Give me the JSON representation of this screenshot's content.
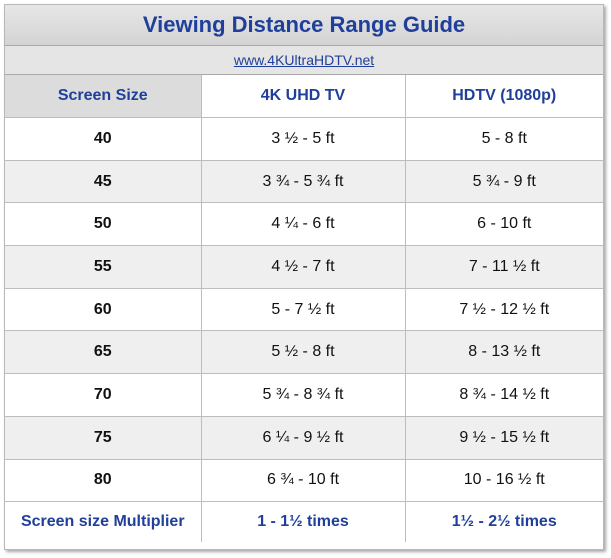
{
  "title": "Viewing Distance Range Guide",
  "url": "www.4KUltraHDTV.net",
  "headers": {
    "screen_size": "Screen Size",
    "uhd": "4K UHD TV",
    "hdtv": "HDTV  (1080p)"
  },
  "rows": [
    {
      "size": "40",
      "uhd": "3 ½ - 5 ft",
      "hdtv": "5 - 8 ft"
    },
    {
      "size": "45",
      "uhd": "3 ¾ - 5 ¾ ft",
      "hdtv": "5 ¾ - 9 ft"
    },
    {
      "size": "50",
      "uhd": "4 ¼ - 6 ft",
      "hdtv": "6 - 10 ft"
    },
    {
      "size": "55",
      "uhd": "4 ½ - 7 ft",
      "hdtv": "7 - 11 ½ ft"
    },
    {
      "size": "60",
      "uhd": "5 - 7 ½ ft",
      "hdtv": "7 ½ - 12 ½ ft"
    },
    {
      "size": "65",
      "uhd": "5 ½ - 8 ft",
      "hdtv": "8 - 13 ½ ft"
    },
    {
      "size": "70",
      "uhd": "5 ¾ - 8 ¾ ft",
      "hdtv": "8 ¾ - 14 ½ ft"
    },
    {
      "size": "75",
      "uhd": "6 ¼ - 9 ½ ft",
      "hdtv": "9 ½ - 15 ½ ft"
    },
    {
      "size": "80",
      "uhd": "6 ¾ - 10 ft",
      "hdtv": "10 - 16 ½ ft"
    }
  ],
  "footer": {
    "label": "Screen size Multiplier",
    "uhd": "1 - 1½   times",
    "hdtv": "1½ - 2½  times"
  },
  "colors": {
    "title_blue": "#1f3f9a",
    "header_gray": "#dcdcdc",
    "alt_row_gray": "#efefef"
  }
}
